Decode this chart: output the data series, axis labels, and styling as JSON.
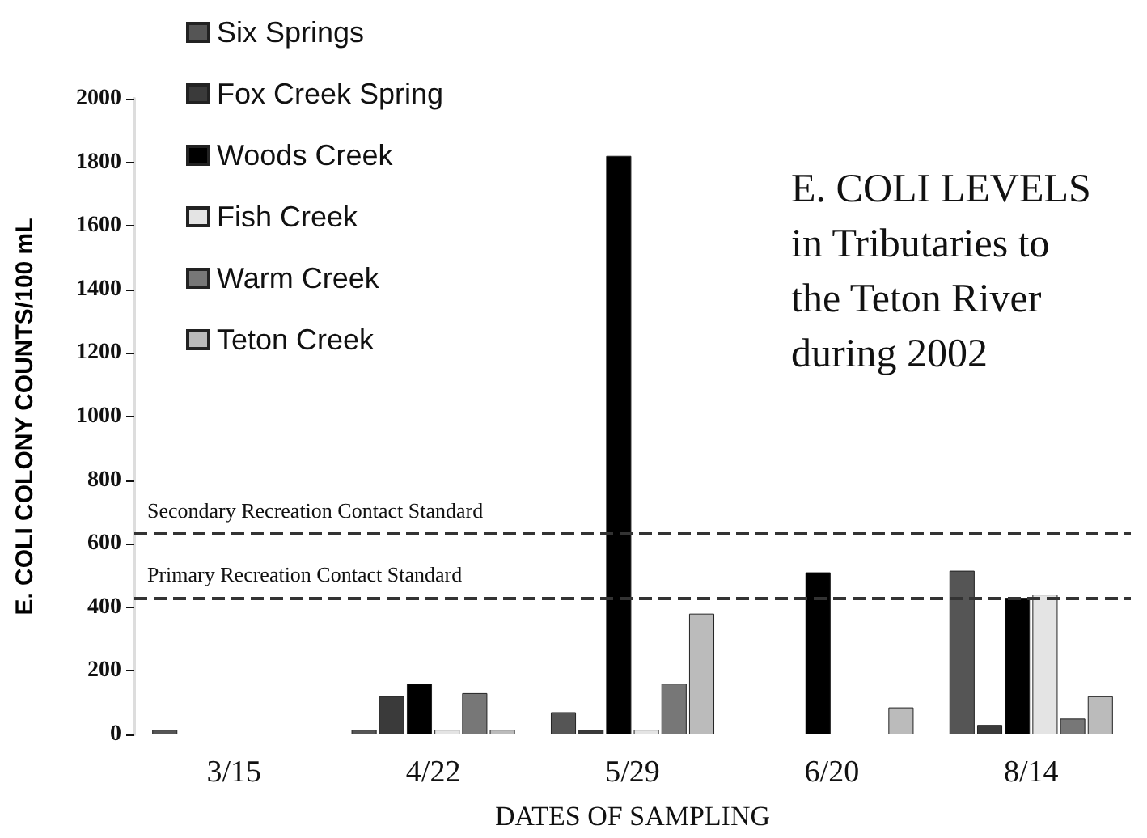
{
  "chart_data": {
    "type": "bar",
    "title": "E. COLI LEVELS in Tributaries to the Teton River during 2002",
    "xlabel": "DATES OF SAMPLING",
    "ylabel": "E. COLI COLONY COUNTS/100 mL",
    "categories": [
      "3/15",
      "4/22",
      "5/29",
      "6/20",
      "8/14"
    ],
    "series": [
      {
        "name": "Six Springs",
        "color": "#555555",
        "values": [
          15,
          15,
          70,
          null,
          515
        ]
      },
      {
        "name": "Fox Creek Spring",
        "color": "#3a3a3a",
        "values": [
          null,
          120,
          15,
          null,
          30
        ]
      },
      {
        "name": "Woods Creek",
        "color": "#000000",
        "values": [
          null,
          160,
          1820,
          510,
          430
        ]
      },
      {
        "name": "Fish Creek",
        "color": "#e4e4e4",
        "values": [
          null,
          15,
          15,
          null,
          440
        ]
      },
      {
        "name": "Warm Creek",
        "color": "#777777",
        "values": [
          null,
          130,
          160,
          null,
          50
        ]
      },
      {
        "name": "Teton Creek",
        "color": "#bbbbbb",
        "values": [
          null,
          15,
          380,
          85,
          120
        ]
      }
    ],
    "ylim": [
      0,
      2000
    ],
    "yticks": [
      0,
      200,
      400,
      600,
      800,
      1000,
      1200,
      1400,
      1600,
      1800,
      2000
    ],
    "ref_lines": [
      {
        "axis": "y",
        "value": 630,
        "label": "Secondary Recreation Contact Standard",
        "color": "#333333",
        "line_style": "dashed"
      },
      {
        "axis": "y",
        "value": 430,
        "label": "Primary Recreation Contact Standard",
        "color": "#333333",
        "line_style": "dashed"
      }
    ],
    "legend": "top left",
    "grid": false
  }
}
